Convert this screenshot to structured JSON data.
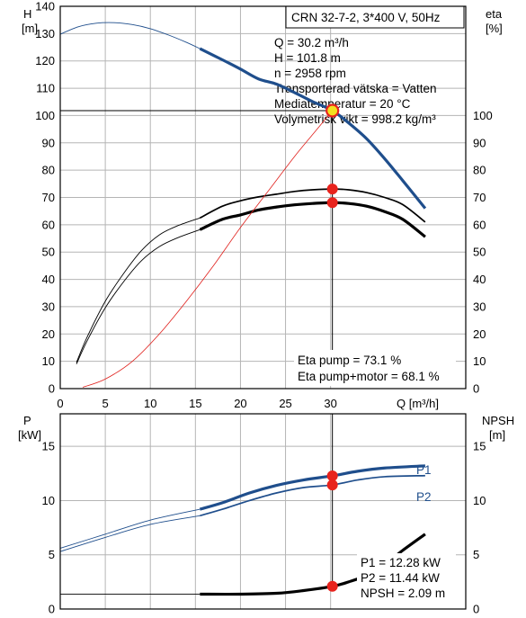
{
  "colors": {
    "head_curve": "#1f4e8c",
    "efficiency_curve": "#000000",
    "system_curve": "#e0201c",
    "operating_point": "#e8231d",
    "operating_point_fill_top": "#f4e11e",
    "grid": "#b5b5b5"
  },
  "chart_data": [
    {
      "type": "line",
      "title": "CRN 32-7-2, 3*400 V, 50Hz",
      "info_lines": [
        "Q = 30.2 m³/h",
        "H = 101.8 m",
        "n = 2958 rpm",
        "Transporterad vätska = Vatten",
        "Mediatemperatur = 20 °C",
        "Volymetrisk vikt = 998.2 kg/m³"
      ],
      "eta_lines": [
        "Eta pump = 73.1 %",
        "Eta pump+motor = 68.1 %"
      ],
      "xlabel": "Q [m³/h]",
      "ylabel_left": [
        "H",
        "[m]"
      ],
      "ylabel_right": [
        "eta",
        "[%]"
      ],
      "xlim": [
        0,
        45
      ],
      "ylim_left": [
        0,
        140
      ],
      "ylim_right": [
        0,
        140
      ],
      "xticks": [
        0,
        5,
        10,
        15,
        20,
        25,
        30
      ],
      "yticks_left": [
        0,
        10,
        20,
        30,
        40,
        50,
        60,
        70,
        80,
        90,
        100,
        110,
        120,
        130,
        140
      ],
      "yticks_right": [
        0,
        10,
        20,
        30,
        40,
        50,
        60,
        70,
        80,
        90,
        100
      ],
      "grid": true,
      "series": [
        {
          "kind": "head-thin",
          "axis": "left",
          "color": "#1f4e8c",
          "width": 0.9,
          "x": [
            0,
            2,
            4,
            6,
            8,
            10,
            12,
            14,
            15.5
          ],
          "y": [
            129.8,
            132.5,
            133.8,
            134,
            133.3,
            131.8,
            129.5,
            126.8,
            124.5
          ]
        },
        {
          "kind": "head-thick",
          "axis": "left",
          "color": "#1f4e8c",
          "width": 3.2,
          "x": [
            15.5,
            18,
            20,
            22,
            24,
            26,
            28,
            30.2,
            32,
            34,
            36,
            38,
            40.5
          ],
          "y": [
            124.5,
            120.4,
            117,
            113.4,
            111.5,
            108.4,
            105.1,
            101.8,
            97.3,
            91.5,
            84.2,
            76.2,
            66
          ]
        },
        {
          "kind": "eta-pump-thin",
          "axis": "right",
          "color": "#000000",
          "width": 0.9,
          "x": [
            1.8,
            3,
            5,
            7,
            9,
            11,
            13,
            15.5
          ],
          "y": [
            9.6,
            19,
            32,
            42,
            50.5,
            56.3,
            59.6,
            62.5
          ]
        },
        {
          "kind": "eta-pump-thick",
          "axis": "right",
          "color": "#000000",
          "width": 1.7,
          "x": [
            15.5,
            18,
            20,
            22,
            24,
            26,
            28,
            30.2,
            32,
            34,
            36,
            38,
            40.5
          ],
          "y": [
            62.5,
            66.8,
            68.8,
            70.2,
            71.2,
            72.2,
            72.8,
            73.1,
            72.8,
            71.8,
            70,
            67.4,
            61
          ]
        },
        {
          "kind": "eta-motor-thin",
          "axis": "right",
          "color": "#000000",
          "width": 0.9,
          "x": [
            1.8,
            3,
            5,
            7,
            9,
            11,
            13,
            15.5
          ],
          "y": [
            9,
            17.6,
            29.6,
            39,
            46.8,
            52,
            55.2,
            58.2
          ]
        },
        {
          "kind": "eta-motor-thick",
          "axis": "right",
          "color": "#000000",
          "width": 3.2,
          "x": [
            15.5,
            18,
            20,
            22,
            24,
            26,
            28,
            30.2,
            32,
            34,
            36,
            38,
            40.5
          ],
          "y": [
            58.2,
            62,
            63.6,
            65.4,
            66.5,
            67.3,
            67.8,
            68.1,
            67.8,
            66.8,
            64.8,
            62,
            55.6
          ]
        },
        {
          "kind": "system",
          "axis": "left",
          "color": "#e0201c",
          "width": 0.8,
          "x": [
            2.5,
            5,
            8,
            11,
            14,
            17,
            20,
            23,
            26,
            28,
            30.2
          ],
          "y": [
            0.5,
            3.5,
            10,
            20,
            32,
            45,
            59,
            72,
            85,
            93,
            101.8
          ]
        }
      ],
      "operating_points": [
        {
          "x": 30.2,
          "y": 101.8,
          "axis": "left",
          "style": "yellow"
        },
        {
          "x": 30.2,
          "y": 73.1,
          "axis": "right",
          "style": "red"
        },
        {
          "x": 30.2,
          "y": 68.1,
          "axis": "right",
          "style": "red"
        }
      ],
      "crosshair": {
        "x": 30.2,
        "y": 101.8,
        "y_bottom": 7.5
      }
    },
    {
      "type": "line",
      "title": "",
      "ylabel_left": [
        "P",
        "[kW]"
      ],
      "ylabel_right": [
        "NPSH",
        "[m]"
      ],
      "xlim": [
        0,
        45
      ],
      "ylim_left": [
        0,
        18
      ],
      "ylim_right": [
        0,
        18
      ],
      "yticks_left": [
        0,
        5,
        10,
        15
      ],
      "yticks_right": [
        0,
        5,
        10,
        15
      ],
      "result_lines": [
        "P1 = 12.28 kW",
        "P2 = 11.44 kW",
        "NPSH = 2.09 m"
      ],
      "grid": true,
      "series": [
        {
          "kind": "p1-thin",
          "axis": "left",
          "color": "#1f4e8c",
          "width": 0.9,
          "name": "P1",
          "x": [
            0,
            5,
            10,
            15.5
          ],
          "y": [
            5.6,
            6.9,
            8.2,
            9.2
          ]
        },
        {
          "kind": "p1-thick",
          "axis": "left",
          "color": "#1f4e8c",
          "width": 3.2,
          "x": [
            15.5,
            18,
            21,
            24,
            27,
            30.2,
            33,
            36,
            40.5
          ],
          "y": [
            9.2,
            9.8,
            10.7,
            11.4,
            11.9,
            12.28,
            12.7,
            13,
            13.2
          ]
        },
        {
          "kind": "p2-thin",
          "axis": "left",
          "color": "#1f4e8c",
          "width": 0.9,
          "name": "P2",
          "x": [
            0,
            5,
            10,
            15.5
          ],
          "y": [
            5.3,
            6.6,
            7.8,
            8.6
          ]
        },
        {
          "kind": "p2-thick",
          "axis": "left",
          "color": "#1f4e8c",
          "width": 1.7,
          "x": [
            15.5,
            18,
            21,
            24,
            27,
            30.2,
            33,
            36,
            40.5
          ],
          "y": [
            8.6,
            9.2,
            10,
            10.7,
            11.2,
            11.44,
            11.9,
            12.2,
            12.3
          ]
        },
        {
          "kind": "npsh-thin",
          "axis": "right",
          "color": "#000000",
          "width": 0.9,
          "x": [
            0,
            15.5
          ],
          "y": [
            1.37,
            1.37
          ]
        },
        {
          "kind": "npsh-thick",
          "axis": "right",
          "color": "#000000",
          "width": 3.2,
          "x": [
            15.5,
            20,
            24,
            27,
            30.2,
            32,
            34,
            36,
            38,
            40.5
          ],
          "y": [
            1.37,
            1.37,
            1.45,
            1.7,
            2.09,
            2.5,
            3.1,
            4.1,
            5.4,
            6.9
          ]
        }
      ],
      "operating_points": [
        {
          "x": 30.2,
          "y": 12.28,
          "axis": "left",
          "style": "red"
        },
        {
          "x": 30.2,
          "y": 11.44,
          "axis": "left",
          "style": "red"
        },
        {
          "x": 30.2,
          "y": 2.09,
          "axis": "right",
          "style": "red"
        }
      ],
      "crosshair": {
        "x": 30.2,
        "y_top": 18
      }
    }
  ]
}
